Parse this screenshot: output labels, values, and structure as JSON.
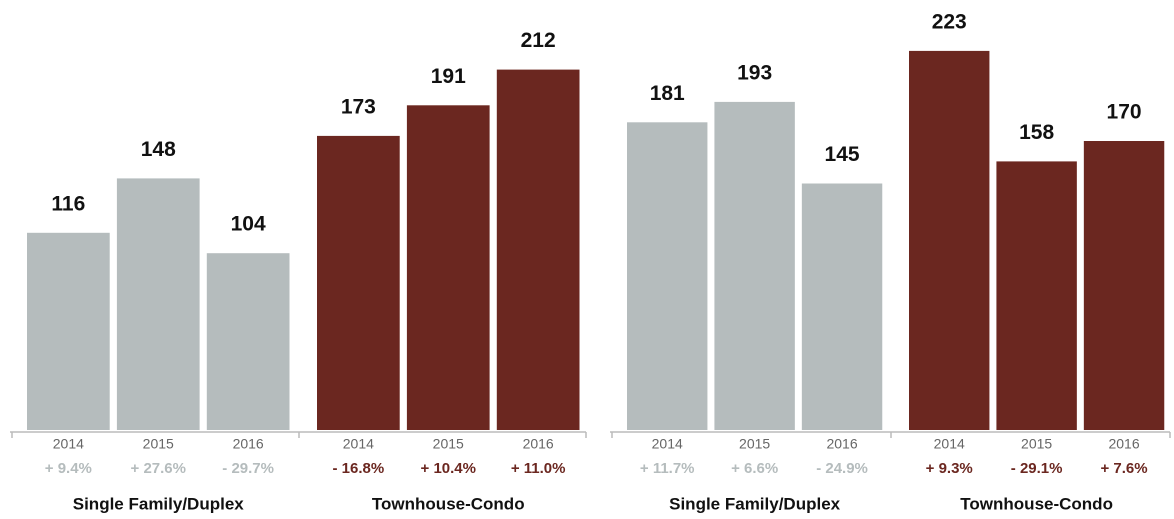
{
  "chart_data": [
    {
      "type": "bar",
      "ylim": [
        0,
        250
      ],
      "groups": [
        {
          "name": "Single Family/Duplex",
          "color": "#b5bcbd",
          "categories": [
            "2014",
            "2015",
            "2016"
          ],
          "values": [
            116,
            148,
            104
          ],
          "changes": [
            "+ 9.4%",
            "+ 27.6%",
            "- 29.7%"
          ]
        },
        {
          "name": "Townhouse-Condo",
          "color": "#6b2720",
          "categories": [
            "2014",
            "2015",
            "2016"
          ],
          "values": [
            173,
            191,
            212
          ],
          "changes": [
            "- 16.8%",
            "+ 10.4%",
            "+ 11.0%"
          ]
        }
      ]
    },
    {
      "type": "bar",
      "ylim": [
        0,
        250
      ],
      "groups": [
        {
          "name": "Single Family/Duplex",
          "color": "#b5bcbd",
          "categories": [
            "2014",
            "2015",
            "2016"
          ],
          "values": [
            181,
            193,
            145
          ],
          "changes": [
            "+ 11.7%",
            "+ 6.6%",
            "- 24.9%"
          ]
        },
        {
          "name": "Townhouse-Condo",
          "color": "#6b2720",
          "categories": [
            "2014",
            "2015",
            "2016"
          ],
          "values": [
            223,
            158,
            170
          ],
          "changes": [
            "+ 9.3%",
            "- 29.1%",
            "+ 7.6%"
          ]
        }
      ]
    }
  ]
}
